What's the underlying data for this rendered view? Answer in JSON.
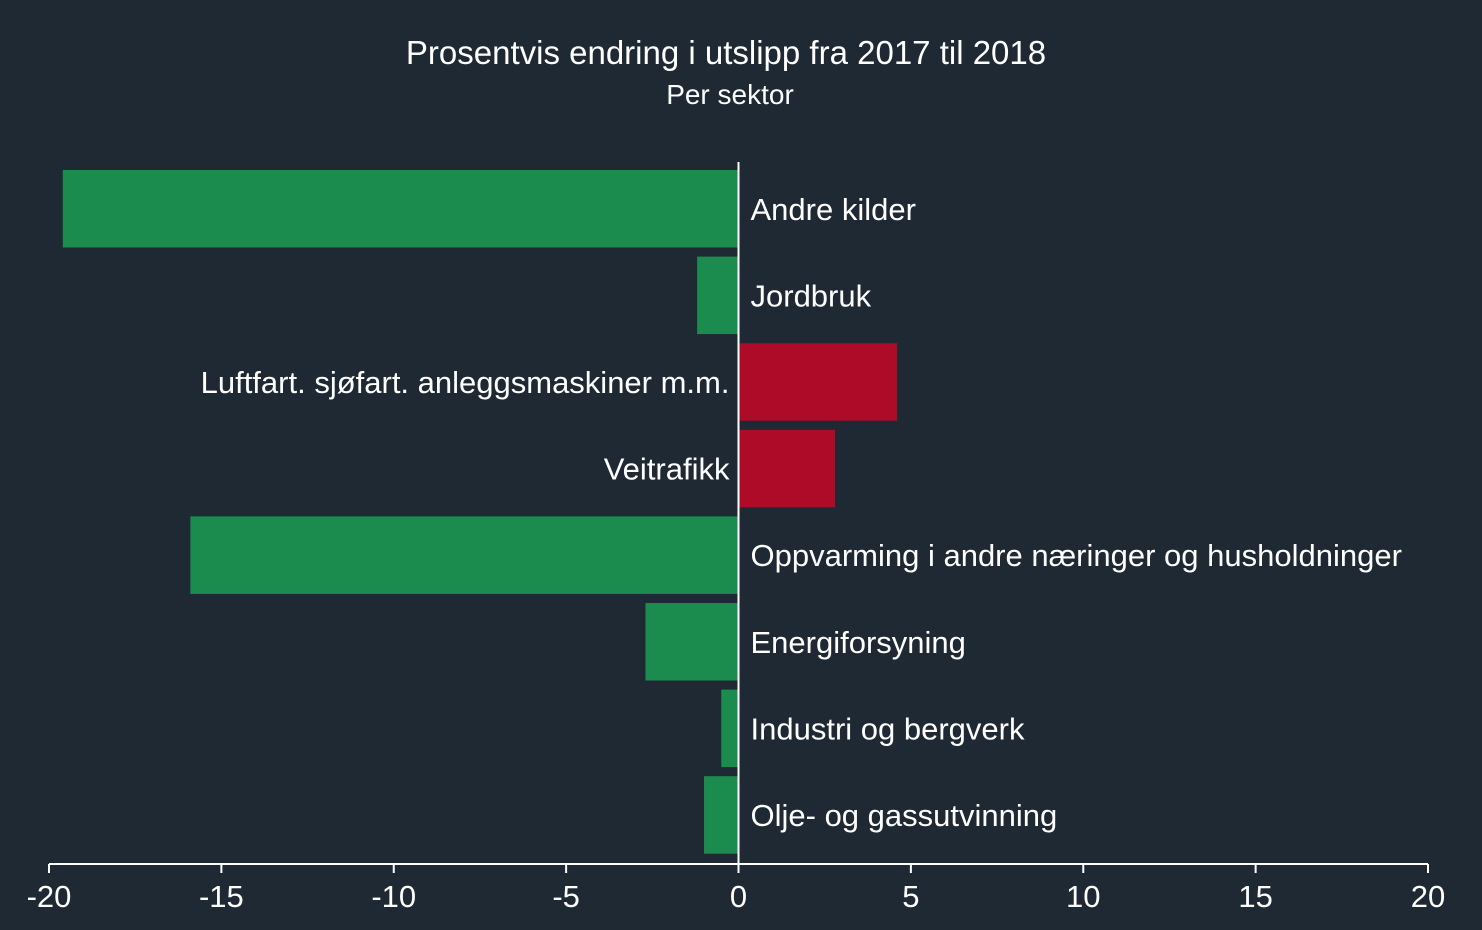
{
  "chart_data": {
    "type": "bar",
    "orientation": "horizontal",
    "title": "Prosentvis endring i utslipp fra 2017 til 2018",
    "subtitle": "Per sektor",
    "xlabel": "",
    "ylabel": "",
    "xlim": [
      -20,
      20
    ],
    "xticks": [
      -20,
      -15,
      -10,
      -5,
      0,
      5,
      10,
      15,
      20
    ],
    "xtick_labels": [
      "-20",
      "-15",
      "-10",
      "-5",
      "0",
      "5",
      "10",
      "15",
      "20"
    ],
    "grid": false,
    "legend": "none",
    "categories": [
      "Andre kilder",
      "Jordbruk",
      "Luftfart. sjøfart. anleggsmaskiner m.m.",
      "Veitrafikk",
      "Oppvarming i andre næringer og husholdninger",
      "Energiforsyning",
      "Industri og bergverk",
      "Olje- og gassutvinning"
    ],
    "values": [
      -19.6,
      -1.2,
      4.6,
      2.8,
      -15.9,
      -2.7,
      -0.5,
      -1.0
    ],
    "colors": {
      "negative": "#1b8c4e",
      "positive": "#ad0b28",
      "background": "#1f2933",
      "axis": "#ffffff",
      "text": "#ffffff"
    }
  }
}
